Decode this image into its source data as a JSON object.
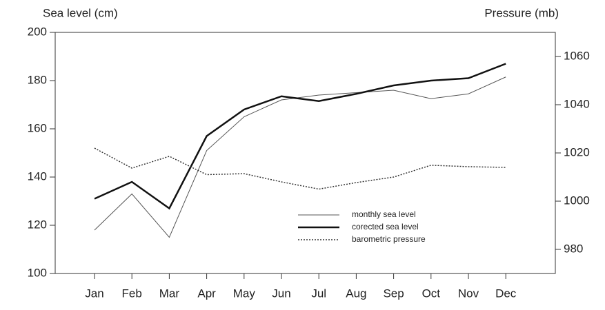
{
  "chart_data": {
    "type": "line",
    "ylabel": "Sea level (cm)",
    "y2label": "Pressure (mb)",
    "categories": [
      "Jan",
      "Feb",
      "Mar",
      "Apr",
      "May",
      "Jun",
      "Jul",
      "Aug",
      "Sep",
      "Oct",
      "Nov",
      "Dec"
    ],
    "ylim": [
      100,
      200
    ],
    "yticks": [
      100,
      120,
      140,
      160,
      180,
      200
    ],
    "y2lim": [
      970,
      1070
    ],
    "y2ticks": [
      980,
      1000,
      1020,
      1040,
      1060
    ],
    "legend": "lower right",
    "series": [
      {
        "name": "monthly sea level",
        "color": "#555555",
        "width": 1,
        "dash": "solid",
        "values": [
          118,
          133,
          115,
          151,
          165,
          172,
          174,
          175,
          176,
          172.5,
          174.5,
          181.5
        ]
      },
      {
        "name": "corected sea level",
        "color": "#111111",
        "width": 2.5,
        "dash": "solid",
        "values": [
          131,
          138,
          127,
          157,
          168,
          173.5,
          171.5,
          174.5,
          178,
          180,
          181,
          187
        ]
      },
      {
        "name": " barometric pressure",
        "color": "#333333",
        "width": 1.5,
        "dash": "dotted",
        "axis": "y2",
        "values": [
          1022,
          1013.7,
          1018.6,
          1011,
          1011.4,
          1008,
          1005,
          1007.7,
          1010,
          1014.9,
          1014.3,
          1014
        ]
      }
    ]
  }
}
